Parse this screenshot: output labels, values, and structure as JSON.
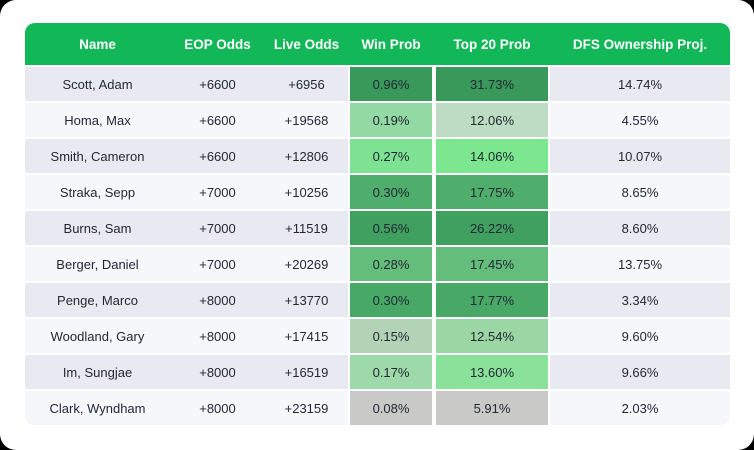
{
  "colors": {
    "header_bg": "#12b857",
    "header_text": "#ffffff",
    "row_odd": "#e9eaf1",
    "row_even": "#f6f7fb",
    "cell_text": "#232834",
    "card_bg": "#ffffff",
    "outside_bg": "#000000"
  },
  "table": {
    "columns": [
      {
        "key": "name",
        "label": "Name"
      },
      {
        "key": "eop",
        "label": "EOP Odds"
      },
      {
        "key": "live",
        "label": "Live Odds"
      },
      {
        "key": "win",
        "label": "Win Prob"
      },
      {
        "key": "top20",
        "label": "Top 20 Prob"
      },
      {
        "key": "dfs",
        "label": "DFS Ownership Proj."
      }
    ],
    "rows": [
      {
        "name": "Scott, Adam",
        "eop": "+6600",
        "live": "+6956",
        "win": "0.96%",
        "win_color": "#38995b",
        "top20": "31.73%",
        "top20_color": "#38995b",
        "dfs": "14.74%"
      },
      {
        "name": "Homa, Max",
        "eop": "+6600",
        "live": "+19568",
        "win": "0.19%",
        "win_color": "#92d9a3",
        "top20": "12.06%",
        "top20_color": "#bddcc3",
        "dfs": "4.55%"
      },
      {
        "name": "Smith, Cameron",
        "eop": "+6600",
        "live": "+12806",
        "win": "0.27%",
        "win_color": "#7ee293",
        "top20": "14.06%",
        "top20_color": "#7ce78f",
        "dfs": "10.07%"
      },
      {
        "name": "Straka, Sepp",
        "eop": "+7000",
        "live": "+10256",
        "win": "0.30%",
        "win_color": "#4fae6b",
        "top20": "17.75%",
        "top20_color": "#4fae6b",
        "dfs": "8.65%"
      },
      {
        "name": "Burns, Sam",
        "eop": "+7000",
        "live": "+11519",
        "win": "0.56%",
        "win_color": "#3fa05f",
        "top20": "26.22%",
        "top20_color": "#3fa05f",
        "dfs": "8.60%"
      },
      {
        "name": "Berger, Daniel",
        "eop": "+7000",
        "live": "+20269",
        "win": "0.28%",
        "win_color": "#64bd7b",
        "top20": "17.45%",
        "top20_color": "#64bd7b",
        "dfs": "13.75%"
      },
      {
        "name": "Penge, Marco",
        "eop": "+8000",
        "live": "+13770",
        "win": "0.30%",
        "win_color": "#47a965",
        "top20": "17.77%",
        "top20_color": "#47a965",
        "dfs": "3.34%"
      },
      {
        "name": "Woodland, Gary",
        "eop": "+8000",
        "live": "+17415",
        "win": "0.15%",
        "win_color": "#b3d3b7",
        "top20": "12.54%",
        "top20_color": "#9bd7a5",
        "dfs": "9.60%"
      },
      {
        "name": "Im, Sungjae",
        "eop": "+8000",
        "live": "+16519",
        "win": "0.17%",
        "win_color": "#9edaa9",
        "top20": "13.60%",
        "top20_color": "#8ae29a",
        "dfs": "9.66%"
      },
      {
        "name": "Clark, Wyndham",
        "eop": "+8000",
        "live": "+23159",
        "win": "0.08%",
        "win_color": "#c9c9c7",
        "top20": "5.91%",
        "top20_color": "#c9c9c7",
        "dfs": "2.03%"
      }
    ]
  }
}
